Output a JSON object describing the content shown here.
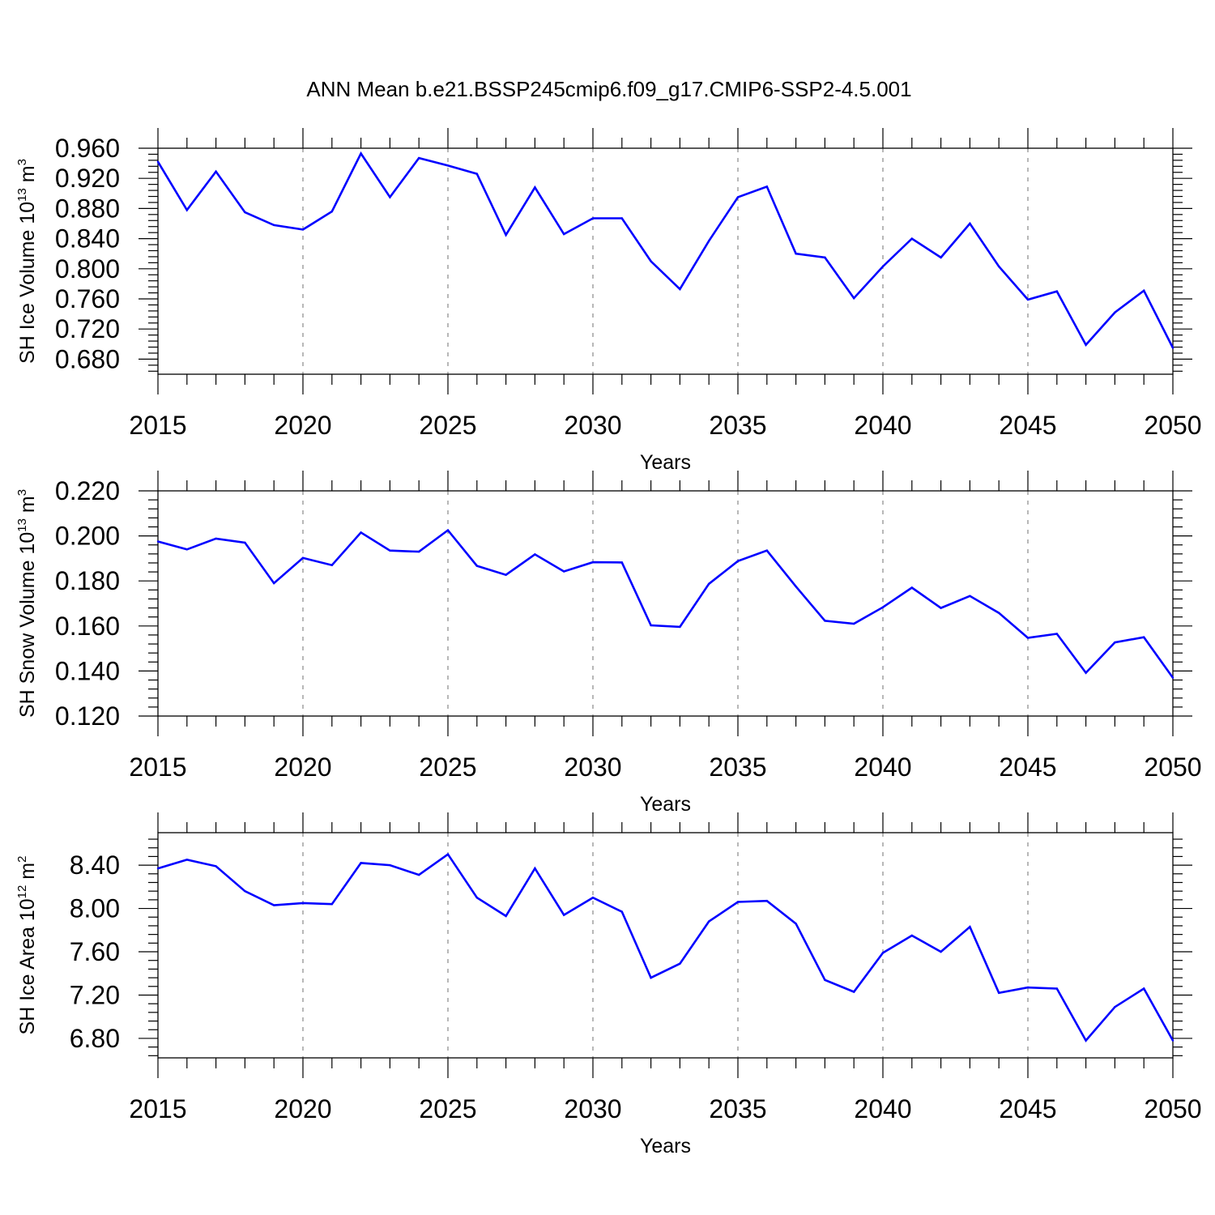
{
  "figure_title": "ANN Mean b.e21.BSSP245cmip6.f09_g17.CMIP6-SSP2-4.5.001",
  "chart_data": [
    {
      "type": "line",
      "xlabel": "Years",
      "ylabel": {
        "text": "SH Ice Volume 10",
        "exponent": "13",
        "unit": " m",
        "unit_exponent": "3"
      },
      "xlim": [
        2015,
        2050
      ],
      "ylim": [
        0.66,
        0.96
      ],
      "xticks": [
        2015,
        2020,
        2025,
        2030,
        2035,
        2040,
        2045,
        2050
      ],
      "yticks": [
        0.68,
        0.72,
        0.76,
        0.8,
        0.84,
        0.88,
        0.92,
        0.96
      ],
      "ytick_labels": [
        "0.680",
        "0.720",
        "0.760",
        "0.800",
        "0.840",
        "0.880",
        "0.920",
        "0.960"
      ],
      "grid": "vertical dashed at major x ticks",
      "color": "#0000ff",
      "x": [
        2015,
        2016,
        2017,
        2018,
        2019,
        2020,
        2021,
        2022,
        2023,
        2024,
        2025,
        2026,
        2027,
        2028,
        2029,
        2030,
        2031,
        2032,
        2033,
        2034,
        2035,
        2036,
        2037,
        2038,
        2039,
        2040,
        2041,
        2042,
        2043,
        2044,
        2045,
        2046,
        2047,
        2048,
        2049,
        2050
      ],
      "y": [
        0.942,
        0.878,
        0.929,
        0.875,
        0.858,
        0.852,
        0.876,
        0.953,
        0.895,
        0.947,
        0.937,
        0.926,
        0.845,
        0.908,
        0.846,
        0.867,
        0.867,
        0.81,
        0.773,
        0.837,
        0.895,
        0.909,
        0.82,
        0.815,
        0.761,
        0.803,
        0.84,
        0.815,
        0.86,
        0.803,
        0.759,
        0.77,
        0.699,
        0.742,
        0.771,
        0.695
      ]
    },
    {
      "type": "line",
      "xlabel": "Years",
      "ylabel": {
        "text": "SH Snow Volume 10",
        "exponent": "13",
        "unit": " m",
        "unit_exponent": "3"
      },
      "xlim": [
        2015,
        2050
      ],
      "ylim": [
        0.12,
        0.22
      ],
      "xticks": [
        2015,
        2020,
        2025,
        2030,
        2035,
        2040,
        2045,
        2050
      ],
      "yticks": [
        0.12,
        0.14,
        0.16,
        0.18,
        0.2,
        0.22
      ],
      "ytick_labels": [
        "0.120",
        "0.140",
        "0.160",
        "0.180",
        "0.200",
        "0.220"
      ],
      "grid": "vertical dashed at major x ticks",
      "color": "#0000ff",
      "x": [
        2015,
        2016,
        2017,
        2018,
        2019,
        2020,
        2021,
        2022,
        2023,
        2024,
        2025,
        2026,
        2027,
        2028,
        2029,
        2030,
        2031,
        2032,
        2033,
        2034,
        2035,
        2036,
        2037,
        2038,
        2039,
        2040,
        2041,
        2042,
        2043,
        2044,
        2045,
        2046,
        2047,
        2048,
        2049,
        2050
      ],
      "y": [
        0.1975,
        0.194,
        0.1988,
        0.197,
        0.179,
        0.1902,
        0.187,
        0.2015,
        0.1935,
        0.193,
        0.2025,
        0.1867,
        0.1827,
        0.1918,
        0.1842,
        0.1883,
        0.1882,
        0.1603,
        0.1596,
        0.1787,
        0.1888,
        0.1935,
        0.1775,
        0.1623,
        0.161,
        0.1683,
        0.177,
        0.168,
        0.1733,
        0.1658,
        0.1547,
        0.1565,
        0.1392,
        0.1527,
        0.155,
        0.137
      ]
    },
    {
      "type": "line",
      "xlabel": "Years",
      "ylabel": {
        "text": "SH Ice Area 10",
        "exponent": "12",
        "unit": " m",
        "unit_exponent": "2"
      },
      "xlim": [
        2015,
        2050
      ],
      "ylim": [
        6.62,
        8.7
      ],
      "xticks": [
        2015,
        2020,
        2025,
        2030,
        2035,
        2040,
        2045,
        2050
      ],
      "yticks": [
        6.8,
        7.2,
        7.6,
        8.0,
        8.4
      ],
      "ytick_labels": [
        "6.80",
        "7.20",
        "7.60",
        "8.00",
        "8.40"
      ],
      "grid": "vertical dashed at major x ticks",
      "color": "#0000ff",
      "x": [
        2015,
        2016,
        2017,
        2018,
        2019,
        2020,
        2021,
        2022,
        2023,
        2024,
        2025,
        2026,
        2027,
        2028,
        2029,
        2030,
        2031,
        2032,
        2033,
        2034,
        2035,
        2036,
        2037,
        2038,
        2039,
        2040,
        2041,
        2042,
        2043,
        2044,
        2045,
        2046,
        2047,
        2048,
        2049,
        2050
      ],
      "y": [
        8.37,
        8.45,
        8.39,
        8.16,
        8.03,
        8.05,
        8.04,
        8.42,
        8.4,
        8.31,
        8.5,
        8.1,
        7.93,
        8.37,
        7.94,
        8.1,
        7.97,
        7.36,
        7.49,
        7.88,
        8.06,
        8.07,
        7.86,
        7.34,
        7.23,
        7.59,
        7.75,
        7.6,
        7.83,
        7.22,
        7.27,
        7.26,
        6.78,
        7.09,
        7.26,
        6.78
      ]
    }
  ]
}
